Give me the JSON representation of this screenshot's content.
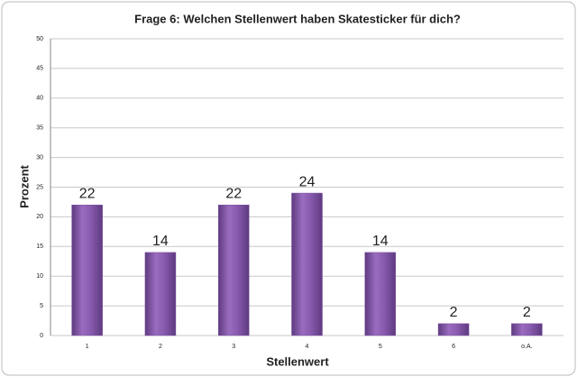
{
  "chart_data": {
    "type": "bar",
    "title": "Frage 6: Welchen Stellenwert haben Skatesticker für dich?",
    "x_label": "Stellenwert",
    "y_label": "Prozent",
    "categories": [
      "1",
      "2",
      "3",
      "4",
      "5",
      "6",
      "o.A."
    ],
    "values": [
      22,
      14,
      22,
      24,
      14,
      2,
      2
    ],
    "color": "#7d52a0",
    "ylim": [
      0,
      50
    ],
    "yticks": [
      0,
      5,
      10,
      15,
      20,
      25,
      30,
      35,
      40,
      45,
      50
    ],
    "grid": true
  }
}
